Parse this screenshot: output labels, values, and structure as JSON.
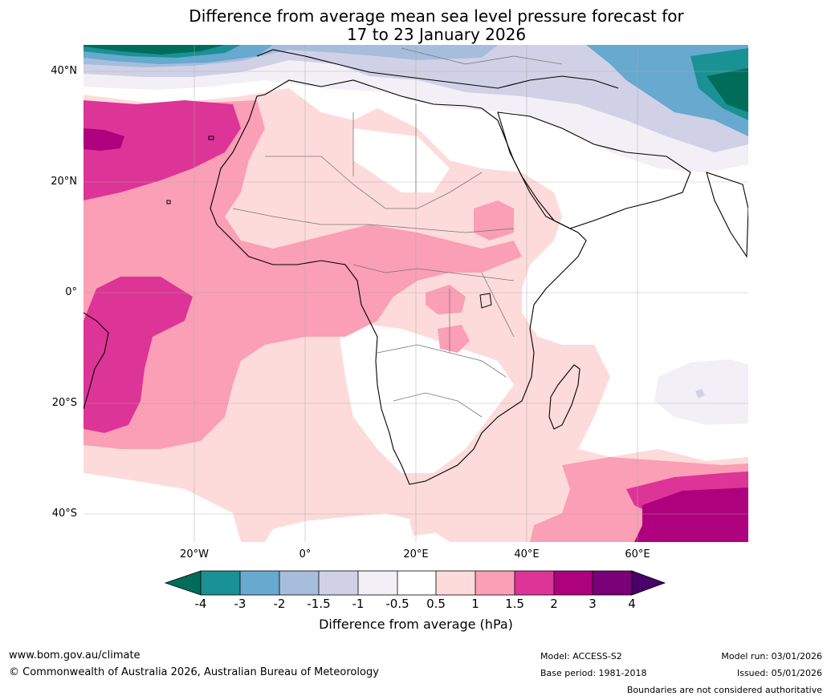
{
  "title": {
    "line1": "Difference from average mean sea level pressure forecast for",
    "line2": "17 to 23 January 2026"
  },
  "map": {
    "lat_labels": [
      "40°N",
      "20°N",
      "0°",
      "20°S",
      "40°S"
    ],
    "lon_labels": [
      "20°W",
      "0°",
      "20°E",
      "40°E",
      "60°E"
    ],
    "extent": {
      "lon_min": -40,
      "lon_max": 80,
      "lat_min": -45,
      "lat_max": 45
    },
    "contour_colors": {
      "minus4": "#006c5a",
      "minus3": "#1a9194",
      "minus2": "#67a9cf",
      "minus1_5": "#a6bddb",
      "minus1": "#d0d1e6",
      "minus0_5": "#f2eff6",
      "neutral": "#ffffff",
      "plus0_5": "#fddbda",
      "plus1": "#fa9fb5",
      "plus1_5": "#dd3497",
      "plus2": "#ae017e",
      "plus3": "#7a0177",
      "plus4": "#49006a"
    }
  },
  "colorbar": {
    "ticks": [
      "-4",
      "-3",
      "-2",
      "-1.5",
      "-1",
      "-0.5",
      "0.5",
      "1",
      "1.5",
      "2",
      "3",
      "4"
    ],
    "label": "Difference from average (hPa)"
  },
  "footer": {
    "website": "www.bom.gov.au/climate",
    "copyright": "© Commonwealth of Australia 2026, Australian Bureau of Meteorology",
    "model": "Model: ACCESS-S2",
    "base_period": "Base period: 1981-2018",
    "model_run": "Model run: 03/01/2026",
    "issued": "Issued: 05/01/2026",
    "disclaimer": "Boundaries are not considered authoritative"
  }
}
